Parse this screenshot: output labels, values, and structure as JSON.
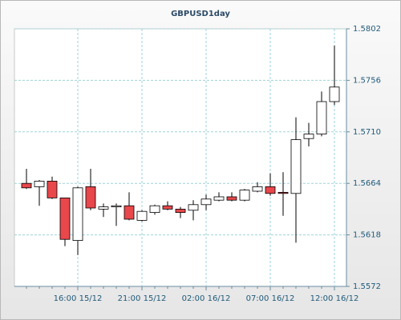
{
  "chart_data": {
    "type": "candlestick",
    "title": "GBPUSD1day",
    "categories": [
      null,
      null,
      null,
      null,
      "16:00 15/12",
      null,
      null,
      null,
      null,
      "21:00 15/12",
      null,
      null,
      null,
      null,
      "02:00 16/12",
      null,
      null,
      null,
      null,
      "07:00 16/12",
      null,
      null,
      null,
      null,
      "12:00 16/12"
    ],
    "open": [
      1.5664,
      1.5661,
      1.5666,
      1.5651,
      1.5613,
      1.5661,
      1.5641,
      1.5643,
      1.5644,
      1.5631,
      1.5638,
      1.5644,
      1.5641,
      1.564,
      1.5645,
      1.5649,
      1.5652,
      1.5649,
      1.5657,
      1.5661,
      1.5656,
      1.5655,
      1.5704,
      1.5708,
      1.5737
    ],
    "high": [
      1.5677,
      1.5667,
      1.567,
      1.5651,
      1.5661,
      1.5677,
      1.5646,
      1.5646,
      1.5656,
      1.564,
      1.5645,
      1.5648,
      1.5643,
      1.5649,
      1.5654,
      1.5656,
      1.5656,
      1.5659,
      1.5665,
      1.5673,
      1.5674,
      1.5723,
      1.5718,
      1.5746,
      1.5787
    ],
    "low": [
      1.5659,
      1.5644,
      1.565,
      1.5608,
      1.56,
      1.564,
      1.5634,
      1.5626,
      1.5631,
      1.563,
      1.5636,
      1.564,
      1.5633,
      1.5631,
      1.564,
      1.5648,
      1.5648,
      1.5648,
      1.5656,
      1.5653,
      1.5635,
      1.5611,
      1.5697,
      1.5706,
      1.5734
    ],
    "close": [
      1.566,
      1.5666,
      1.5651,
      1.5614,
      1.566,
      1.5642,
      1.5643,
      1.5644,
      1.5632,
      1.5639,
      1.5644,
      1.5641,
      1.5638,
      1.5645,
      1.565,
      1.5652,
      1.5649,
      1.5658,
      1.5661,
      1.5655,
      1.5655,
      1.5703,
      1.5708,
      1.5737,
      1.575
    ],
    "up_color": "#ffffff",
    "down_color": "#e8474b",
    "ylim": [
      1.5572,
      1.5802
    ],
    "yticks": [
      1.5572,
      1.5618,
      1.5664,
      {
        "value": 1.571,
        "label": "1.5710"
      },
      1.5756,
      1.5802
    ],
    "y_axis_side": "right",
    "grid": true
  }
}
